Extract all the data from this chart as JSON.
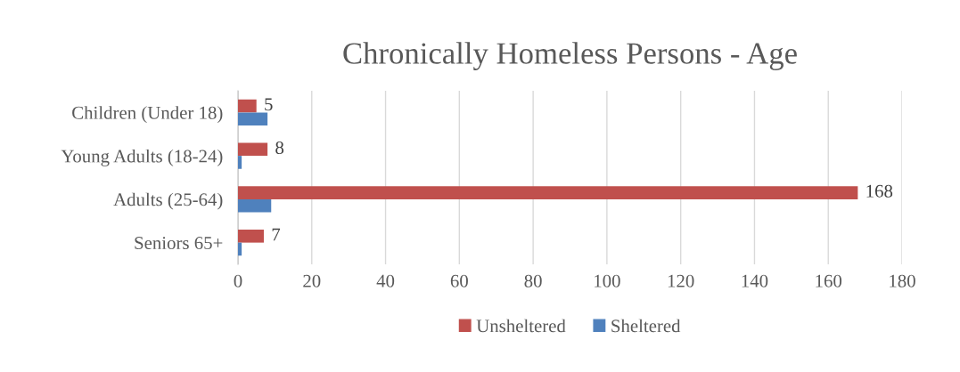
{
  "chart_data": {
    "type": "bar",
    "orientation": "horizontal",
    "title": "Chronically Homeless Persons - Age",
    "categories": [
      "Children (Under 18)",
      "Young Adults (18-24)",
      "Adults (25-64)",
      "Seniors 65+"
    ],
    "series": [
      {
        "name": "Unsheltered",
        "color": "#c0504d",
        "values": [
          5,
          8,
          168,
          7
        ],
        "value_labels": [
          "5",
          "8",
          "168",
          "7"
        ]
      },
      {
        "name": "Sheltered",
        "color": "#4f81bd",
        "values": [
          8,
          1,
          9,
          1
        ]
      }
    ],
    "xlim": [
      0,
      180
    ],
    "xticks": [
      0,
      20,
      40,
      60,
      80,
      100,
      120,
      140,
      160,
      180
    ],
    "grid": "x",
    "legend": "bottom"
  }
}
